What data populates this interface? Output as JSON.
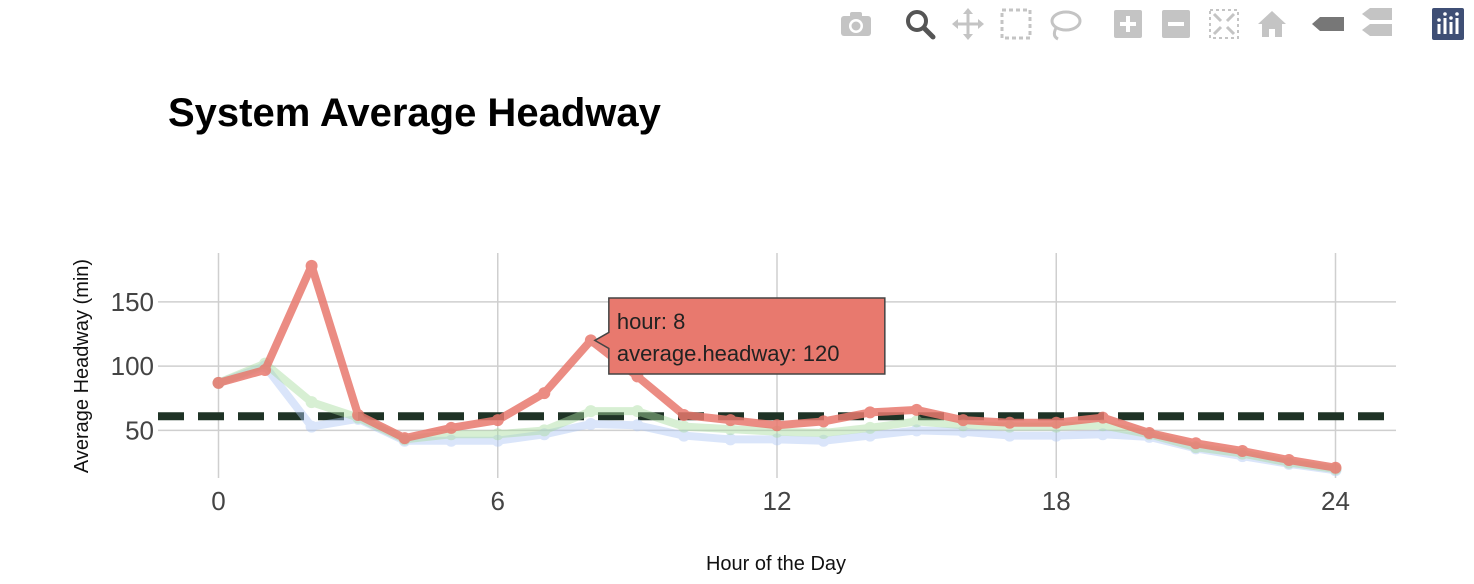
{
  "toolbar": {
    "buttons": [
      {
        "icon": "camera-icon",
        "label": "Download plot as a png",
        "active": false
      },
      {
        "icon": "zoom-icon",
        "label": "Zoom",
        "active": true
      },
      {
        "icon": "pan-icon",
        "label": "Pan",
        "active": false
      },
      {
        "icon": "box-select-icon",
        "label": "Box Select",
        "active": false
      },
      {
        "icon": "lasso-select-icon",
        "label": "Lasso Select",
        "active": false
      },
      {
        "icon": "zoom-in-icon",
        "label": "Zoom in",
        "active": false
      },
      {
        "icon": "zoom-out-icon",
        "label": "Zoom out",
        "active": false
      },
      {
        "icon": "autoscale-icon",
        "label": "Autoscale",
        "active": false
      },
      {
        "icon": "home-icon",
        "label": "Reset axes",
        "active": false
      },
      {
        "icon": "spike-lines-icon",
        "label": "Toggle Spike Lines",
        "active": false
      },
      {
        "icon": "hover-compare-icon",
        "label": "Compare data on hover",
        "active": false
      },
      {
        "icon": "plotly-logo-icon",
        "label": "Produced with Plotly",
        "active": false
      }
    ]
  },
  "chart_data": {
    "type": "line",
    "title": "System Average Headway",
    "xlabel": "Hour of the Day",
    "ylabel": "Average Headway (min)",
    "xlim": [
      -1.3,
      25.3
    ],
    "ylim": [
      13,
      188
    ],
    "xticks": [
      0,
      6,
      12,
      18,
      24
    ],
    "yticks": [
      50,
      100,
      150
    ],
    "grid": true,
    "legend": "none",
    "x": [
      0,
      1,
      2,
      3,
      4,
      5,
      6,
      7,
      8,
      9,
      10,
      11,
      12,
      13,
      14,
      15,
      16,
      17,
      18,
      19,
      20,
      21,
      22,
      23,
      24
    ],
    "series": [
      {
        "color": "#aec7f4",
        "opacity": 0.45,
        "values": [
          87,
          100,
          53,
          59,
          42,
          42,
          42,
          47,
          55,
          54,
          46,
          43,
          43,
          42,
          46,
          50,
          49,
          46,
          46,
          47,
          45,
          36,
          30,
          24,
          19
        ]
      },
      {
        "color": "#a8dca0",
        "opacity": 0.45,
        "values": [
          87,
          102,
          72,
          60,
          43,
          47,
          47,
          50,
          65,
          65,
          53,
          51,
          49,
          48,
          52,
          57,
          54,
          53,
          53,
          54,
          47,
          37,
          32,
          25,
          20
        ]
      },
      {
        "color": "#e8796e",
        "opacity": 0.85,
        "values": [
          87,
          97,
          178,
          62,
          44,
          52,
          58,
          79,
          120,
          92,
          62,
          58,
          54,
          57,
          64,
          66,
          58,
          56,
          56,
          60,
          48,
          40,
          34,
          27,
          21
        ]
      }
    ],
    "reference_line": {
      "y": 61,
      "color": "#1f3326",
      "style": "dashed"
    },
    "hover": {
      "x": 8,
      "y": 120,
      "line1": "hour:  8",
      "line2": "average.headway: 120",
      "bgcolor": "#e8796e"
    }
  }
}
